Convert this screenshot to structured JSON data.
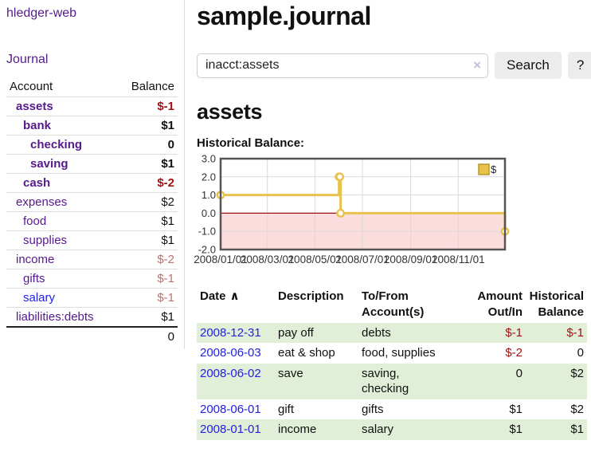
{
  "sidebar": {
    "brand": "hledger-web",
    "journal_link": "Journal",
    "header": {
      "account": "Account",
      "balance": "Balance"
    },
    "accounts": [
      {
        "name": "assets",
        "balance": "$-1"
      },
      {
        "name": "bank",
        "balance": "$1"
      },
      {
        "name": "checking",
        "balance": "0"
      },
      {
        "name": "saving",
        "balance": "$1"
      },
      {
        "name": "cash",
        "balance": "$-2"
      },
      {
        "name": "expenses",
        "balance": "$2"
      },
      {
        "name": "food",
        "balance": "$1"
      },
      {
        "name": "supplies",
        "balance": "$1"
      },
      {
        "name": "income",
        "balance": "$-2"
      },
      {
        "name": "gifts",
        "balance": "$-1"
      },
      {
        "name": "salary",
        "balance": "$-1"
      },
      {
        "name": "liabilities:debts",
        "balance": "$1"
      }
    ],
    "total": "0"
  },
  "header": {
    "title": "sample.journal"
  },
  "search": {
    "value": "inacct:assets",
    "clear_icon": "×",
    "button_label": "Search",
    "help_label": "?"
  },
  "account_page": {
    "title": "assets",
    "chart_label": "Historical Balance:"
  },
  "chart_data": {
    "type": "line",
    "step": true,
    "title": "Historical Balance",
    "x_domain": [
      "2008-01-01",
      "2008-12-31"
    ],
    "ylim": [
      -2,
      3
    ],
    "x_ticks": [
      "2008/01/01",
      "2008/03/01",
      "2008/05/01",
      "2008/07/01",
      "2008/09/01",
      "2008/11/01"
    ],
    "y_ticks": [
      3.0,
      2.0,
      1.0,
      0.0,
      -1.0,
      -2.0
    ],
    "grid": true,
    "legend_position": "top-right",
    "series": [
      {
        "name": "$",
        "points": [
          {
            "x": "2008-01-01",
            "y": 1
          },
          {
            "x": "2008-06-01",
            "y": 2
          },
          {
            "x": "2008-06-02",
            "y": 2
          },
          {
            "x": "2008-06-03",
            "y": 0
          },
          {
            "x": "2008-12-31",
            "y": -1
          }
        ]
      }
    ],
    "colors": {
      "line": "#e8c24b",
      "marker_fill": "#ffffff",
      "negative_region": "#fbdddd",
      "zero_line": "#991111",
      "grid": "#d9d9d9",
      "border": "#555555",
      "tick_text": "#333333"
    }
  },
  "register": {
    "columns": {
      "date": "Date",
      "description": "Description",
      "accounts": "To/From\nAccount(s)",
      "amount": "Amount\nOut/In",
      "historical": "Historical\nBalance"
    },
    "sort_icon": "∧",
    "rows": [
      {
        "date": "2008-12-31",
        "description": "pay off",
        "accounts": "debts",
        "amount": "$-1",
        "historical": "$-1"
      },
      {
        "date": "2008-06-03",
        "description": "eat & shop",
        "accounts": "food, supplies",
        "amount": "$-2",
        "historical": "0"
      },
      {
        "date": "2008-06-02",
        "description": "save",
        "accounts": "saving,\nchecking",
        "amount": "0",
        "historical": "$2"
      },
      {
        "date": "2008-06-01",
        "description": "gift",
        "accounts": "gifts",
        "amount": "$1",
        "historical": "$2"
      },
      {
        "date": "2008-01-01",
        "description": "income",
        "accounts": "salary",
        "amount": "$1",
        "historical": "$1"
      }
    ]
  },
  "colors": {
    "link_purple": "#551a8b",
    "link_blue": "#2222dd",
    "negative_strong": "#a01313",
    "negative_weak": "#c17070",
    "row_green": "#e2efd8"
  }
}
